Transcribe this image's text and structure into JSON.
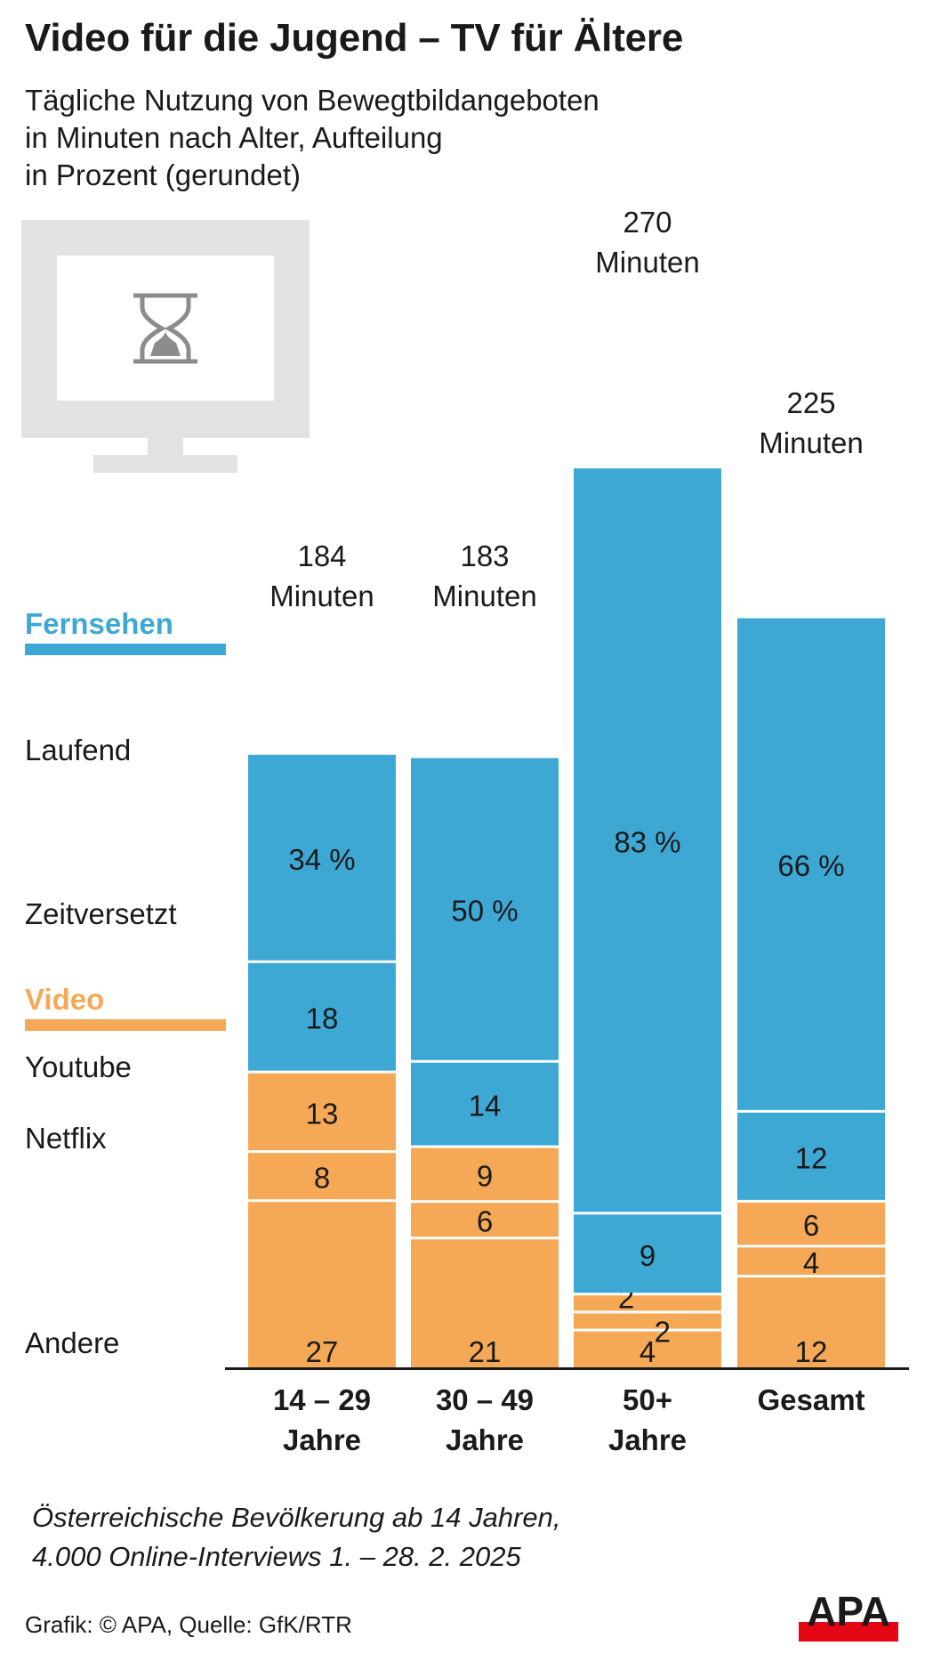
{
  "header": {
    "title": "Video für die Jugend – TV für Ältere",
    "subtitle_lines": [
      "Tägliche Nutzung von Bewegtbildangeboten",
      "in Minuten nach Alter, Aufteilung",
      "in Prozent (gerundet)"
    ]
  },
  "legend": {
    "tv_heading": "Fernsehen",
    "tv_items": [
      "Laufend",
      "Zeitversetzt"
    ],
    "video_heading": "Video",
    "video_items": [
      "Youtube",
      "Netflix",
      "Andere"
    ]
  },
  "colors": {
    "tv": "#3ea8d5",
    "video": "#f5a956",
    "axis": "#1a1a1a",
    "icon": "#e2e2e2",
    "hourglass": "#8c8c8c",
    "logo_red": "#e30613"
  },
  "chart_data": {
    "type": "bar",
    "stacked": true,
    "categories": [
      {
        "line1": "14 – 29",
        "line2": "Jahre"
      },
      {
        "line1": "30 – 49",
        "line2": "Jahre"
      },
      {
        "line1": "50+",
        "line2": "Jahre"
      },
      {
        "line1": "Gesamt",
        "line2": ""
      }
    ],
    "totals": [
      {
        "value": "184",
        "unit": "Minuten",
        "minutes": 184
      },
      {
        "value": "183",
        "unit": "Minuten",
        "minutes": 183
      },
      {
        "value": "270",
        "unit": "Minuten",
        "minutes": 270
      },
      {
        "value": "225",
        "unit": "Minuten",
        "minutes": 225
      }
    ],
    "series": [
      {
        "name": "Laufend",
        "group": "Fernsehen",
        "values": [
          34,
          50,
          83,
          66
        ],
        "labels": [
          "34 %",
          "50 %",
          "83 %",
          "66 %"
        ]
      },
      {
        "name": "Zeitversetzt",
        "group": "Fernsehen",
        "values": [
          18,
          14,
          9,
          12
        ],
        "labels": [
          "18",
          "14",
          "9",
          "12"
        ]
      },
      {
        "name": "Youtube",
        "group": "Video",
        "values": [
          13,
          9,
          2,
          6
        ],
        "labels": [
          "13",
          "9",
          "2",
          "6"
        ]
      },
      {
        "name": "Netflix",
        "group": "Video",
        "values": [
          8,
          6,
          2,
          4
        ],
        "labels": [
          "8",
          "6",
          "2",
          "4"
        ]
      },
      {
        "name": "Andere",
        "group": "Video",
        "values": [
          27,
          21,
          4,
          12
        ],
        "labels": [
          "27",
          "21",
          "4",
          "12"
        ]
      }
    ],
    "unit": "Prozent"
  },
  "footer": {
    "note_lines": [
      "Österreichische Bevölkerung ab 14 Jahren,",
      "4.000 Online-Interviews 1. – 28. 2. 2025"
    ],
    "credit": "Grafik: © APA, Quelle: GfK/RTR",
    "logo_text": "APA"
  }
}
